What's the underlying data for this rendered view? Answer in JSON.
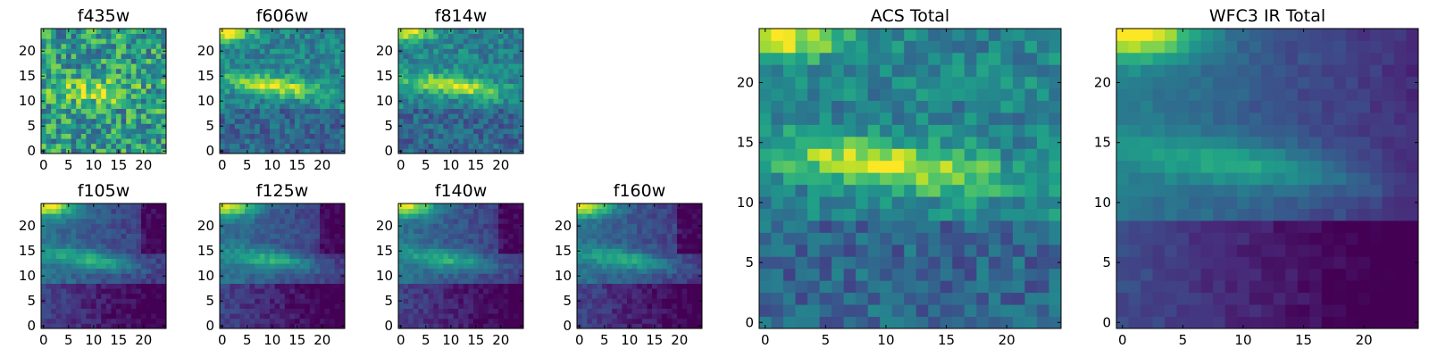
{
  "chart_data": [
    {
      "type": "heatmap",
      "title": "f435w",
      "size": 25,
      "xticks": [
        0,
        5,
        10,
        15,
        20
      ],
      "yticks": [
        0,
        5,
        10,
        15,
        20
      ],
      "xlim": [
        0,
        25
      ],
      "ylim": [
        0,
        25
      ],
      "colormap": "viridis",
      "profile": "noisy"
    },
    {
      "type": "heatmap",
      "title": "f606w",
      "size": 25,
      "xticks": [
        0,
        5,
        10,
        15,
        20
      ],
      "yticks": [
        0,
        5,
        10,
        15,
        20
      ],
      "xlim": [
        0,
        25
      ],
      "ylim": [
        0,
        25
      ],
      "colormap": "viridis",
      "profile": "acs"
    },
    {
      "type": "heatmap",
      "title": "f814w",
      "size": 25,
      "xticks": [
        0,
        5,
        10,
        15,
        20
      ],
      "yticks": [
        0,
        5,
        10,
        15,
        20
      ],
      "xlim": [
        0,
        25
      ],
      "ylim": [
        0,
        25
      ],
      "colormap": "viridis",
      "profile": "acs"
    },
    {
      "type": "heatmap",
      "title": "f105w",
      "size": 25,
      "xticks": [
        0,
        5,
        10,
        15,
        20
      ],
      "yticks": [
        0,
        5,
        10,
        15,
        20
      ],
      "xlim": [
        0,
        25
      ],
      "ylim": [
        0,
        25
      ],
      "colormap": "viridis",
      "profile": "ir"
    },
    {
      "type": "heatmap",
      "title": "f125w",
      "size": 25,
      "xticks": [
        0,
        5,
        10,
        15,
        20
      ],
      "yticks": [
        0,
        5,
        10,
        15,
        20
      ],
      "xlim": [
        0,
        25
      ],
      "ylim": [
        0,
        25
      ],
      "colormap": "viridis",
      "profile": "ir"
    },
    {
      "type": "heatmap",
      "title": "f140w",
      "size": 25,
      "xticks": [
        0,
        5,
        10,
        15,
        20
      ],
      "yticks": [
        0,
        5,
        10,
        15,
        20
      ],
      "xlim": [
        0,
        25
      ],
      "ylim": [
        0,
        25
      ],
      "colormap": "viridis",
      "profile": "ir"
    },
    {
      "type": "heatmap",
      "title": "f160w",
      "size": 25,
      "xticks": [
        0,
        5,
        10,
        15,
        20
      ],
      "yticks": [
        0,
        5,
        10,
        15,
        20
      ],
      "xlim": [
        0,
        25
      ],
      "ylim": [
        0,
        25
      ],
      "colormap": "viridis",
      "profile": "ir"
    },
    {
      "type": "heatmap",
      "title": "ACS Total",
      "size": 25,
      "xticks": [
        0,
        5,
        10,
        15,
        20
      ],
      "yticks": [
        0,
        5,
        10,
        15,
        20
      ],
      "xlim": [
        0,
        25
      ],
      "ylim": [
        0,
        25
      ],
      "colormap": "viridis",
      "profile": "acs"
    },
    {
      "type": "heatmap",
      "title": "WFC3 IR Total",
      "size": 25,
      "xticks": [
        0,
        5,
        10,
        15,
        20
      ],
      "yticks": [
        0,
        5,
        10,
        15,
        20
      ],
      "xlim": [
        0,
        25
      ],
      "ylim": [
        0,
        25
      ],
      "colormap": "viridis",
      "profile": "irsmooth"
    }
  ]
}
